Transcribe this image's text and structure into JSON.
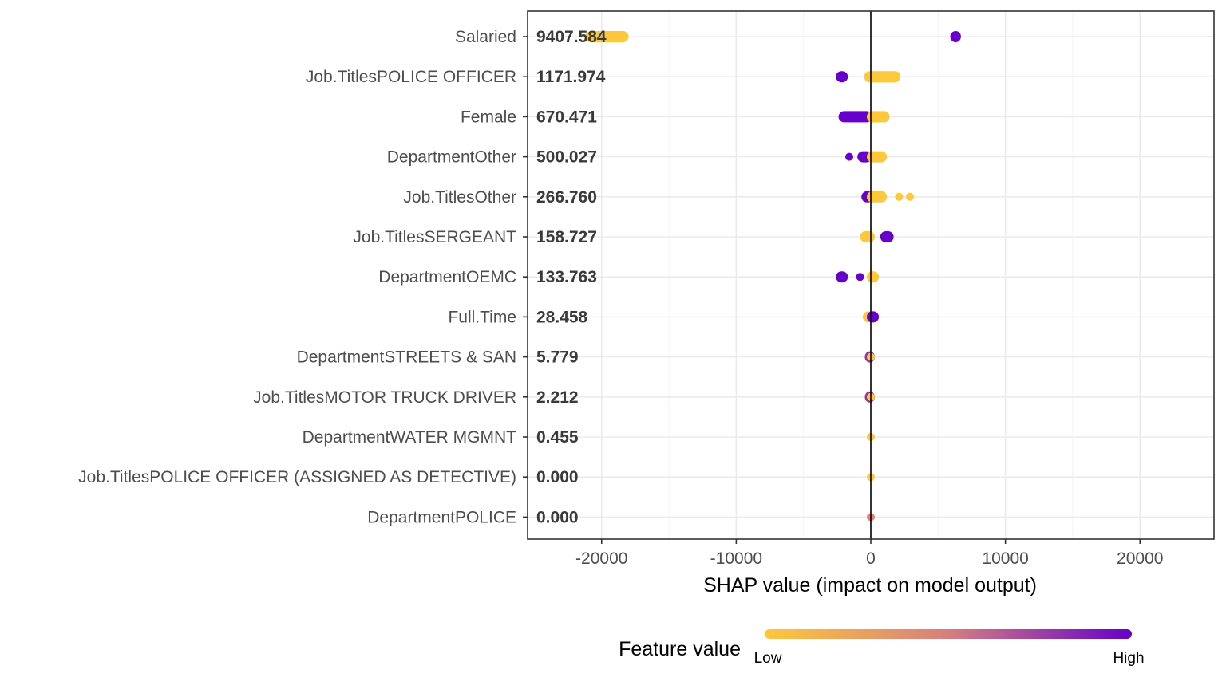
{
  "chart_data": {
    "type": "scatter",
    "subtype": "shap-beeswarm",
    "xlabel": "SHAP value (impact on model output)",
    "xlim": [
      -25500,
      25500
    ],
    "xticks": [
      -20000,
      -10000,
      0,
      10000,
      20000
    ],
    "xtick_labels": [
      "-20000",
      "-10000",
      "0",
      "10000",
      "20000"
    ],
    "grid": true,
    "features": [
      {
        "name": "Salaried",
        "mean_abs": "9407.584",
        "clusters": [
          [
            -20900,
            -18300,
            0.0
          ],
          [
            6200,
            6400,
            1.0
          ]
        ]
      },
      {
        "name": "Job.TitlesPOLICE OFFICER",
        "mean_abs": "1171.974",
        "clusters": [
          [
            -2300,
            -2000,
            1.0
          ],
          [
            -200,
            1900,
            0.0
          ]
        ]
      },
      {
        "name": "Female",
        "mean_abs": "670.471",
        "clusters": [
          [
            -2100,
            -200,
            1.0
          ],
          [
            0,
            1100,
            0.0
          ]
        ]
      },
      {
        "name": "DepartmentOther",
        "mean_abs": "500.027",
        "clusters": [
          [
            -1600,
            -1500,
            1.0
          ],
          [
            -700,
            -200,
            1.0
          ],
          [
            0,
            900,
            0.0
          ]
        ]
      },
      {
        "name": "Job.TitlesOther",
        "mean_abs": "266.760",
        "clusters": [
          [
            -400,
            -100,
            1.0
          ],
          [
            0,
            900,
            0.0
          ],
          [
            2100,
            2100,
            0.0
          ],
          [
            2900,
            2900,
            0.0
          ]
        ]
      },
      {
        "name": "Job.TitlesSERGEANT",
        "mean_abs": "158.727",
        "clusters": [
          [
            -500,
            0,
            0.0
          ],
          [
            1000,
            1400,
            1.0
          ]
        ]
      },
      {
        "name": "DepartmentOEMC",
        "mean_abs": "133.763",
        "clusters": [
          [
            -2300,
            -2000,
            1.0
          ],
          [
            -800,
            -700,
            1.0
          ],
          [
            0,
            300,
            0.0
          ]
        ]
      },
      {
        "name": "Full.Time",
        "mean_abs": "28.458",
        "clusters": [
          [
            -300,
            0,
            0.0
          ],
          [
            0,
            300,
            1.0
          ]
        ]
      },
      {
        "name": "DepartmentSTREETS & SAN",
        "mean_abs": "5.779",
        "clusters": [
          [
            -150,
            0,
            0.8
          ],
          [
            0,
            100,
            0.0
          ]
        ]
      },
      {
        "name": "Job.TitlesMOTOR TRUCK DRIVER",
        "mean_abs": "2.212",
        "clusters": [
          [
            -150,
            0,
            0.8
          ],
          [
            0,
            100,
            0.0
          ]
        ]
      },
      {
        "name": "DepartmentWATER MGMNT",
        "mean_abs": "0.455",
        "clusters": [
          [
            0,
            60,
            0.0
          ]
        ]
      },
      {
        "name": "Job.TitlesPOLICE OFFICER (ASSIGNED AS DETECTIVE)",
        "mean_abs": "0.000",
        "clusters": [
          [
            0,
            0,
            0.0
          ]
        ]
      },
      {
        "name": "DepartmentPOLICE",
        "mean_abs": "0.000",
        "clusters": [
          [
            0,
            0,
            0.45
          ]
        ]
      }
    ],
    "legend": {
      "title": "Feature value",
      "low_label": "Low",
      "high_label": "High",
      "position": "bottom"
    },
    "colors": {
      "low": "#FFC73A",
      "mid": "#D87E7E",
      "high": "#6600CC",
      "grid": "#EBEBEB",
      "zero_line": "#000000"
    }
  }
}
